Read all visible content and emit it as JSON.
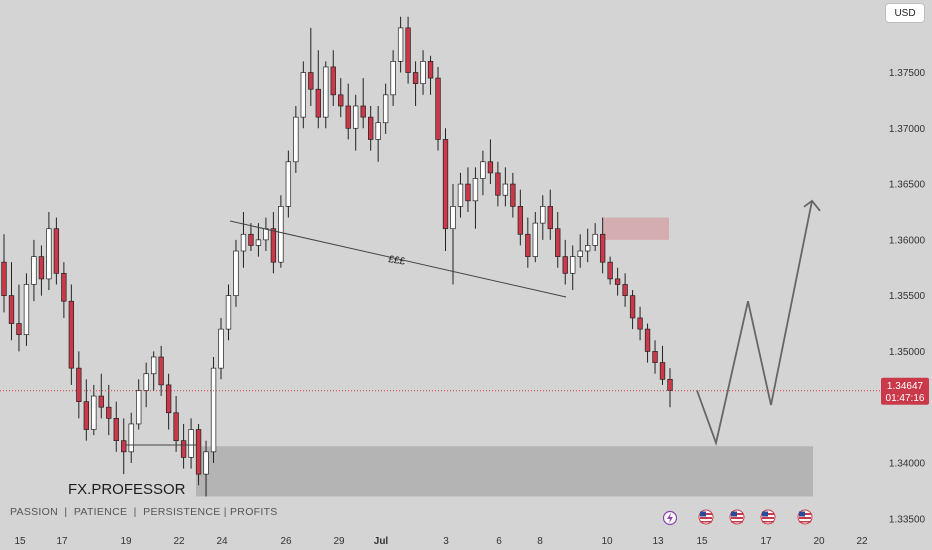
{
  "currency_button": "USD",
  "watermark": {
    "title": "FX.PROFESSOR",
    "subtitle": "PASSION  |  PATIENCE  |  PERSISTENCE | PROFITS"
  },
  "annotation_label": "£££",
  "price_label": {
    "price": "1.34647",
    "countdown": "01:47:16"
  },
  "colors": {
    "up": "#ffffff",
    "down": "#c9394a",
    "wick": "#222222",
    "zone": "#b4b4b4",
    "supply": "#d3a6aa",
    "projection": "#666666",
    "price_line": "#c9394a"
  },
  "chart_data": {
    "type": "candlestick",
    "ylim": [
      1.3322,
      1.3815
    ],
    "y_ticks": [
      "1.37500",
      "1.37000",
      "1.36500",
      "1.36000",
      "1.35500",
      "1.35000",
      "1.34000",
      "1.33500"
    ],
    "x_ticks": [
      "15",
      "17",
      "19",
      "22",
      "24",
      "26",
      "29",
      "Jul",
      "3",
      "6",
      "8",
      "10",
      "13",
      "15",
      "17",
      "20",
      "22"
    ],
    "current_price": 1.34647,
    "demand_zone": {
      "from": 1.337,
      "to": 1.3415
    },
    "supply_zone": {
      "from": 1.36,
      "to": 1.362
    },
    "projection_path": [
      1.3465,
      1.3418,
      1.3545,
      1.3452,
      1.3635
    ],
    "candles": [
      [
        1.358,
        1.3605,
        1.3535,
        1.355
      ],
      [
        1.355,
        1.358,
        1.351,
        1.3525
      ],
      [
        1.3525,
        1.356,
        1.35,
        1.3515
      ],
      [
        1.3515,
        1.357,
        1.3505,
        1.356
      ],
      [
        1.356,
        1.36,
        1.3545,
        1.3585
      ],
      [
        1.3585,
        1.3595,
        1.355,
        1.3565
      ],
      [
        1.3565,
        1.3625,
        1.3555,
        1.361
      ],
      [
        1.361,
        1.362,
        1.356,
        1.357
      ],
      [
        1.357,
        1.358,
        1.353,
        1.3545
      ],
      [
        1.3545,
        1.356,
        1.347,
        1.3485
      ],
      [
        1.3485,
        1.35,
        1.344,
        1.3455
      ],
      [
        1.3455,
        1.3475,
        1.342,
        1.343
      ],
      [
        1.343,
        1.347,
        1.3425,
        1.346
      ],
      [
        1.346,
        1.348,
        1.344,
        1.345
      ],
      [
        1.345,
        1.347,
        1.3425,
        1.344
      ],
      [
        1.344,
        1.3455,
        1.341,
        1.342
      ],
      [
        1.342,
        1.344,
        1.339,
        1.341
      ],
      [
        1.341,
        1.3445,
        1.34,
        1.3435
      ],
      [
        1.3435,
        1.3475,
        1.343,
        1.3465
      ],
      [
        1.3465,
        1.349,
        1.345,
        1.348
      ],
      [
        1.348,
        1.35,
        1.3465,
        1.3495
      ],
      [
        1.3495,
        1.3505,
        1.346,
        1.347
      ],
      [
        1.347,
        1.348,
        1.343,
        1.3445
      ],
      [
        1.3445,
        1.346,
        1.341,
        1.342
      ],
      [
        1.342,
        1.3435,
        1.3395,
        1.3405
      ],
      [
        1.3405,
        1.344,
        1.3395,
        1.343
      ],
      [
        1.343,
        1.3435,
        1.338,
        1.339
      ],
      [
        1.339,
        1.342,
        1.337,
        1.341
      ],
      [
        1.341,
        1.3495,
        1.34,
        1.3485
      ],
      [
        1.3485,
        1.353,
        1.3475,
        1.352
      ],
      [
        1.352,
        1.356,
        1.351,
        1.355
      ],
      [
        1.355,
        1.36,
        1.354,
        1.359
      ],
      [
        1.359,
        1.3625,
        1.3575,
        1.3605
      ],
      [
        1.3605,
        1.3615,
        1.359,
        1.3595
      ],
      [
        1.3595,
        1.3615,
        1.3585,
        1.36
      ],
      [
        1.36,
        1.362,
        1.359,
        1.361
      ],
      [
        1.361,
        1.3625,
        1.357,
        1.358
      ],
      [
        1.358,
        1.364,
        1.3575,
        1.363
      ],
      [
        1.363,
        1.368,
        1.362,
        1.367
      ],
      [
        1.367,
        1.372,
        1.366,
        1.371
      ],
      [
        1.371,
        1.376,
        1.37,
        1.375
      ],
      [
        1.375,
        1.379,
        1.372,
        1.3735
      ],
      [
        1.3735,
        1.377,
        1.37,
        1.371
      ],
      [
        1.371,
        1.376,
        1.37,
        1.3755
      ],
      [
        1.3755,
        1.377,
        1.372,
        1.373
      ],
      [
        1.373,
        1.3745,
        1.371,
        1.372
      ],
      [
        1.372,
        1.374,
        1.369,
        1.37
      ],
      [
        1.37,
        1.373,
        1.368,
        1.372
      ],
      [
        1.372,
        1.3745,
        1.37,
        1.371
      ],
      [
        1.371,
        1.372,
        1.368,
        1.369
      ],
      [
        1.369,
        1.372,
        1.367,
        1.3705
      ],
      [
        1.3705,
        1.374,
        1.3695,
        1.373
      ],
      [
        1.373,
        1.377,
        1.372,
        1.376
      ],
      [
        1.376,
        1.38,
        1.375,
        1.379
      ],
      [
        1.379,
        1.38,
        1.374,
        1.375
      ],
      [
        1.375,
        1.376,
        1.372,
        1.374
      ],
      [
        1.374,
        1.377,
        1.373,
        1.376
      ],
      [
        1.376,
        1.3765,
        1.373,
        1.3745
      ],
      [
        1.3745,
        1.3755,
        1.368,
        1.369
      ],
      [
        1.369,
        1.37,
        1.359,
        1.361
      ],
      [
        1.361,
        1.365,
        1.356,
        1.363
      ],
      [
        1.363,
        1.366,
        1.362,
        1.365
      ],
      [
        1.365,
        1.3665,
        1.3625,
        1.3635
      ],
      [
        1.3635,
        1.3665,
        1.361,
        1.3655
      ],
      [
        1.3655,
        1.368,
        1.364,
        1.367
      ],
      [
        1.367,
        1.369,
        1.365,
        1.366
      ],
      [
        1.366,
        1.367,
        1.363,
        1.364
      ],
      [
        1.364,
        1.3665,
        1.363,
        1.365
      ],
      [
        1.365,
        1.366,
        1.362,
        1.363
      ],
      [
        1.363,
        1.3645,
        1.3595,
        1.3605
      ],
      [
        1.3605,
        1.362,
        1.3575,
        1.3585
      ],
      [
        1.3585,
        1.3625,
        1.358,
        1.3615
      ],
      [
        1.3615,
        1.364,
        1.36,
        1.363
      ],
      [
        1.363,
        1.3645,
        1.36,
        1.361
      ],
      [
        1.361,
        1.3625,
        1.3575,
        1.3585
      ],
      [
        1.3585,
        1.36,
        1.356,
        1.357
      ],
      [
        1.357,
        1.3595,
        1.3555,
        1.3585
      ],
      [
        1.3585,
        1.3605,
        1.3575,
        1.359
      ],
      [
        1.359,
        1.361,
        1.358,
        1.3595
      ],
      [
        1.3595,
        1.3615,
        1.359,
        1.3605
      ],
      [
        1.3605,
        1.362,
        1.357,
        1.358
      ],
      [
        1.358,
        1.3585,
        1.356,
        1.3565
      ],
      [
        1.3565,
        1.3575,
        1.355,
        1.356
      ],
      [
        1.356,
        1.357,
        1.354,
        1.355
      ],
      [
        1.355,
        1.3555,
        1.352,
        1.353
      ],
      [
        1.353,
        1.354,
        1.351,
        1.352
      ],
      [
        1.352,
        1.3525,
        1.349,
        1.35
      ],
      [
        1.35,
        1.351,
        1.348,
        1.349
      ],
      [
        1.349,
        1.3505,
        1.347,
        1.3475
      ],
      [
        1.3475,
        1.3485,
        1.345,
        1.3465
      ]
    ]
  }
}
